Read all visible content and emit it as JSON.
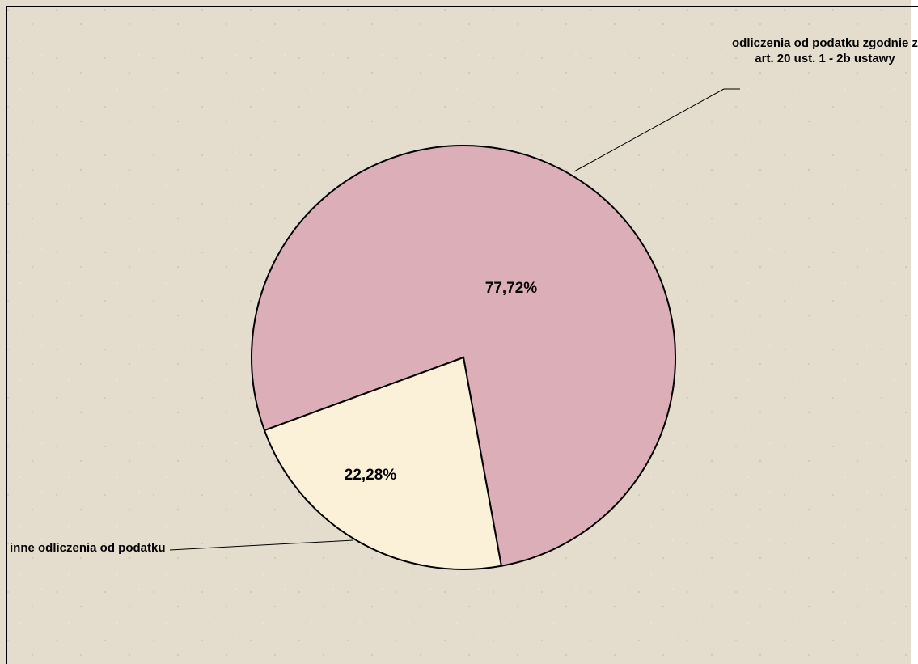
{
  "chart_data": {
    "type": "pie",
    "categories": [
      "odliczenia od podatku zgodnie z art. 20 ust. 1 - 2b ustawy",
      "inne odliczenia od podatku"
    ],
    "values": [
      77.72,
      22.28
    ],
    "value_labels": [
      "77,72%",
      "22,28%"
    ],
    "colors": [
      "#dcaeb7",
      "#fbf0d8"
    ]
  }
}
